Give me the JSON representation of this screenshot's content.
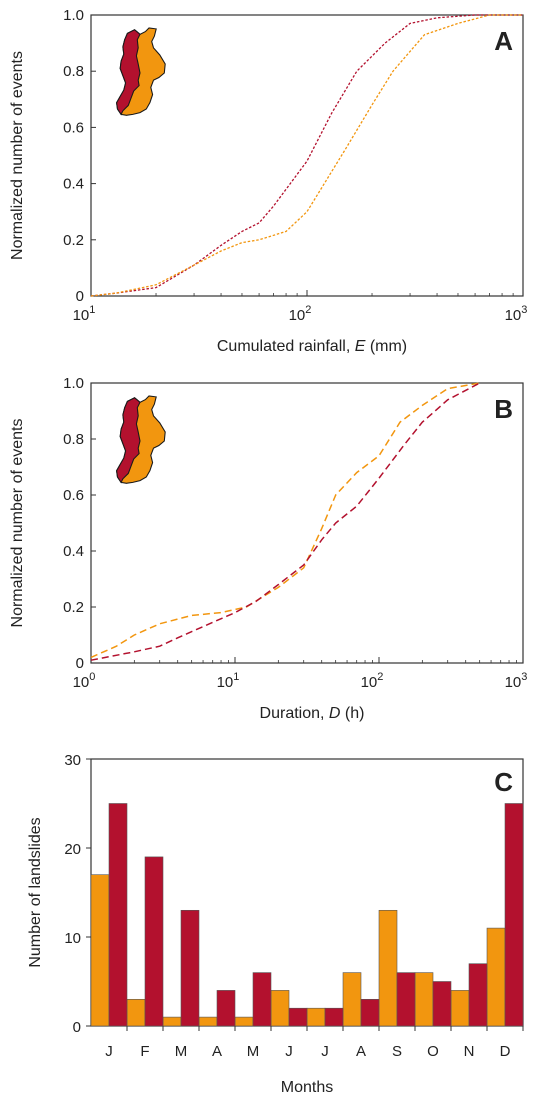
{
  "colors": {
    "orange": "#f2960f",
    "red": "#b3112e",
    "axis": "#333333"
  },
  "chart_data": [
    {
      "type": "line",
      "panel_label": "A",
      "xlabel_parts": [
        "Cumulated rainfall, ",
        "E",
        " (mm)"
      ],
      "ylabel": "Normalized number of events",
      "x_scale": "log",
      "xlim": [
        10,
        1000
      ],
      "ylim": [
        0,
        1
      ],
      "x_ticks": [
        {
          "base": "10",
          "exp": "1"
        },
        {
          "base": "10",
          "exp": "2"
        },
        {
          "base": "10",
          "exp": "3"
        }
      ],
      "y_ticks": [
        "0",
        "0.2",
        "0.4",
        "0.6",
        "0.8",
        "1.0"
      ],
      "line_style": "dotted",
      "inset": "map-of-region-icon",
      "series": [
        {
          "color": "red",
          "points": [
            [
              10,
              0
            ],
            [
              13,
              0.01
            ],
            [
              20,
              0.03
            ],
            [
              30,
              0.11
            ],
            [
              40,
              0.18
            ],
            [
              50,
              0.23
            ],
            [
              60,
              0.26
            ],
            [
              70,
              0.32
            ],
            [
              80,
              0.38
            ],
            [
              100,
              0.48
            ],
            [
              130,
              0.65
            ],
            [
              170,
              0.8
            ],
            [
              230,
              0.9
            ],
            [
              300,
              0.97
            ],
            [
              400,
              0.99
            ],
            [
              600,
              1.0
            ],
            [
              1000,
              1.0
            ]
          ]
        },
        {
          "color": "orange",
          "points": [
            [
              10,
              0
            ],
            [
              13,
              0.01
            ],
            [
              20,
              0.04
            ],
            [
              30,
              0.11
            ],
            [
              40,
              0.16
            ],
            [
              50,
              0.19
            ],
            [
              60,
              0.2
            ],
            [
              80,
              0.23
            ],
            [
              100,
              0.3
            ],
            [
              150,
              0.52
            ],
            [
              200,
              0.68
            ],
            [
              250,
              0.8
            ],
            [
              350,
              0.93
            ],
            [
              500,
              0.97
            ],
            [
              700,
              1.0
            ],
            [
              1000,
              1.0
            ]
          ]
        }
      ]
    },
    {
      "type": "line",
      "panel_label": "B",
      "xlabel_parts": [
        "Duration, ",
        "D",
        " (h)"
      ],
      "ylabel": "Normalized number of events",
      "x_scale": "log",
      "xlim": [
        1,
        1000
      ],
      "ylim": [
        0,
        1
      ],
      "x_ticks": [
        {
          "base": "10",
          "exp": "0"
        },
        {
          "base": "10",
          "exp": "1"
        },
        {
          "base": "10",
          "exp": "2"
        },
        {
          "base": "10",
          "exp": "3"
        }
      ],
      "y_ticks": [
        "0",
        "0.2",
        "0.4",
        "0.6",
        "0.8",
        "1.0"
      ],
      "line_style": "dashed",
      "inset": "map-of-region-icon",
      "series": [
        {
          "color": "orange",
          "points": [
            [
              1,
              0.02
            ],
            [
              1.5,
              0.06
            ],
            [
              2,
              0.1
            ],
            [
              3,
              0.14
            ],
            [
              5,
              0.17
            ],
            [
              8,
              0.18
            ],
            [
              12,
              0.2
            ],
            [
              16,
              0.24
            ],
            [
              20,
              0.27
            ],
            [
              30,
              0.34
            ],
            [
              40,
              0.48
            ],
            [
              50,
              0.6
            ],
            [
              70,
              0.68
            ],
            [
              100,
              0.74
            ],
            [
              140,
              0.86
            ],
            [
              200,
              0.92
            ],
            [
              300,
              0.98
            ],
            [
              500,
              1.0
            ]
          ]
        },
        {
          "color": "red",
          "points": [
            [
              1,
              0.01
            ],
            [
              2,
              0.04
            ],
            [
              3,
              0.06
            ],
            [
              4,
              0.09
            ],
            [
              6,
              0.13
            ],
            [
              10,
              0.18
            ],
            [
              14,
              0.22
            ],
            [
              20,
              0.28
            ],
            [
              30,
              0.35
            ],
            [
              40,
              0.44
            ],
            [
              50,
              0.5
            ],
            [
              70,
              0.56
            ],
            [
              100,
              0.66
            ],
            [
              150,
              0.78
            ],
            [
              200,
              0.86
            ],
            [
              300,
              0.94
            ],
            [
              500,
              1.0
            ]
          ]
        }
      ]
    },
    {
      "type": "bar",
      "panel_label": "C",
      "xlabel": "Months",
      "ylabel": "Number of landslides",
      "ylim": [
        0,
        30
      ],
      "y_ticks": [
        "0",
        "10",
        "20",
        "30"
      ],
      "categories": [
        "J",
        "F",
        "M",
        "A",
        "M",
        "J",
        "J",
        "A",
        "S",
        "O",
        "N",
        "D"
      ],
      "series": [
        {
          "color": "orange",
          "values": [
            17,
            3,
            1,
            1,
            1,
            4,
            2,
            6,
            13,
            6,
            4,
            11
          ]
        },
        {
          "color": "red",
          "values": [
            25,
            19,
            13,
            4,
            6,
            2,
            2,
            3,
            6,
            5,
            7,
            25
          ]
        }
      ]
    }
  ]
}
